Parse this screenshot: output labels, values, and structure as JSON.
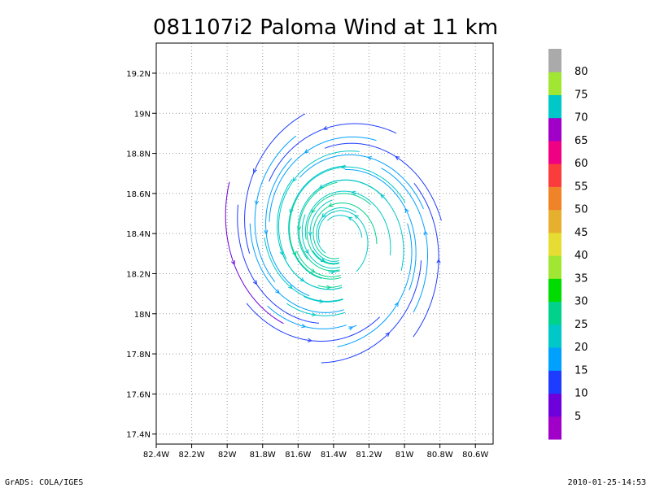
{
  "chart_data": {
    "type": "streamline",
    "title": "081107i2 Paloma Wind at 11 km",
    "xlim": [
      -82.4,
      -80.5
    ],
    "ylim": [
      17.35,
      19.35
    ],
    "x_ticks": [
      {
        "value": -82.4,
        "label": "82.4W"
      },
      {
        "value": -82.2,
        "label": "82.2W"
      },
      {
        "value": -82.0,
        "label": "82W"
      },
      {
        "value": -81.8,
        "label": "81.8W"
      },
      {
        "value": -81.6,
        "label": "81.6W"
      },
      {
        "value": -81.4,
        "label": "81.4W"
      },
      {
        "value": -81.2,
        "label": "81.2W"
      },
      {
        "value": -81.0,
        "label": "81W"
      },
      {
        "value": -80.8,
        "label": "80.8W"
      },
      {
        "value": -80.6,
        "label": "80.6W"
      }
    ],
    "y_ticks": [
      {
        "value": 17.4,
        "label": "17.4N"
      },
      {
        "value": 17.6,
        "label": "17.6N"
      },
      {
        "value": 17.8,
        "label": "17.8N"
      },
      {
        "value": 18.0,
        "label": "18N"
      },
      {
        "value": 18.2,
        "label": "18.2N"
      },
      {
        "value": 18.4,
        "label": "18.4N"
      },
      {
        "value": 18.6,
        "label": "18.6N"
      },
      {
        "value": 18.8,
        "label": "18.8N"
      },
      {
        "value": 19.0,
        "label": "19N"
      },
      {
        "value": 19.2,
        "label": "19.2N"
      }
    ],
    "grid": true,
    "center": {
      "lon": -81.38,
      "lat": 18.38
    },
    "eye_radius_deg": 0.1,
    "max_radius_deg": 0.7,
    "colorbar": {
      "labels": [
        "5",
        "10",
        "15",
        "20",
        "25",
        "30",
        "35",
        "40",
        "45",
        "50",
        "55",
        "60",
        "65",
        "70",
        "75",
        "80"
      ],
      "colors": [
        "#a000c8",
        "#6e00dc",
        "#1e3cff",
        "#00a0ff",
        "#00c8c8",
        "#00d28c",
        "#00dc00",
        "#a0e632",
        "#e6dc32",
        "#e6af2d",
        "#f08228",
        "#fa3c3c",
        "#f00082",
        "#a000c8",
        "#00c8c8",
        "#a0e632",
        "#aaaaaa"
      ]
    }
  },
  "footer": {
    "left": "GrADS: COLA/IGES",
    "right": "2010-01-25-14:53"
  },
  "colors": {
    "speed_10": "#6e00dc",
    "speed_15": "#1e3cff",
    "speed_20": "#00a0ff",
    "speed_25": "#00c8c8",
    "speed_30": "#00d28c",
    "speed_35": "#00dc00"
  }
}
